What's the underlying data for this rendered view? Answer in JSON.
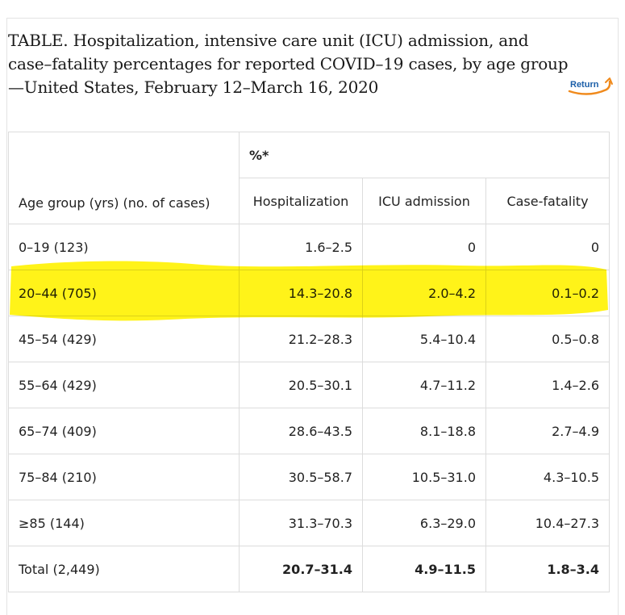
{
  "caption": {
    "line1": "TABLE. Hospitalization, intensive care unit (ICU) admission, and",
    "line2": "case–fatality percentages for reported COVID–19 cases, by age group",
    "line3": "—United States, February 12–March 16, 2020"
  },
  "return_link": {
    "label": "Return",
    "icon": "return-arrow-icon"
  },
  "table": {
    "group_header": "%*",
    "columns": [
      "Age group (yrs) (no. of cases)",
      "Hospitalization",
      "ICU admission",
      "Case-fatality"
    ],
    "rows": [
      [
        "0–19 (123)",
        "1.6–2.5",
        "0",
        "0"
      ],
      [
        "20–44 (705)",
        "14.3–20.8",
        "2.0–4.2",
        "0.1–0.2"
      ],
      [
        "45–54 (429)",
        "21.2–28.3",
        "5.4–10.4",
        "0.5–0.8"
      ],
      [
        "55–64 (429)",
        "20.5–30.1",
        "4.7–11.2",
        "1.4–2.6"
      ],
      [
        "65–74 (409)",
        "28.6–43.5",
        "8.1–18.8",
        "2.7–4.9"
      ],
      [
        "75–84 (210)",
        "30.5–58.7",
        "10.5–31.0",
        "4.3–10.5"
      ],
      [
        "≥85 (144)",
        "31.3–70.3",
        "6.3–29.0",
        "10.4–27.3"
      ],
      [
        "Total (2,449)",
        "20.7–31.4",
        "4.9–11.5",
        "1.8–3.4"
      ]
    ]
  },
  "highlight_color": "#fff200"
}
